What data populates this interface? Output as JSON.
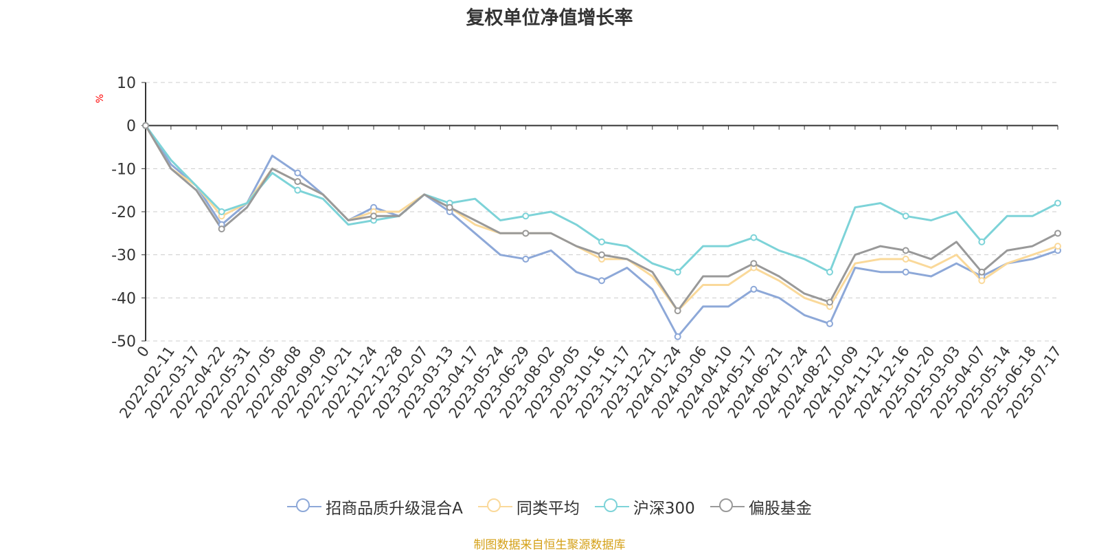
{
  "chart_data": {
    "type": "line",
    "title": "复权单位净值增长率",
    "ylabel": "%",
    "ylim": [
      -50,
      10
    ],
    "yticks": [
      10,
      0,
      -10,
      -20,
      -30,
      -40,
      -50
    ],
    "x": [
      "0",
      "2022-02-11",
      "2022-03-17",
      "2022-04-22",
      "2022-05-31",
      "2022-07-05",
      "2022-08-08",
      "2022-09-09",
      "2022-10-21",
      "2022-11-24",
      "2022-12-28",
      "2023-02-07",
      "2023-03-13",
      "2023-04-17",
      "2023-05-24",
      "2023-06-29",
      "2023-08-02",
      "2023-09-05",
      "2023-10-16",
      "2023-11-17",
      "2023-12-21",
      "2024-01-24",
      "2024-03-06",
      "2024-04-10",
      "2024-05-17",
      "2024-06-21",
      "2024-07-24",
      "2024-08-27",
      "2024-10-09",
      "2024-11-12",
      "2024-12-16",
      "2025-01-20",
      "2025-03-03",
      "2025-04-07",
      "2025-05-14",
      "2025-06-18",
      "2025-07-17"
    ],
    "series": [
      {
        "name": "招商品质升级混合A",
        "color": "#8da8d8",
        "values": [
          0,
          -9,
          -14,
          -23,
          -18,
          -7,
          -11,
          -16,
          -22,
          -19,
          -21,
          -16,
          -20,
          -25,
          -30,
          -31,
          -29,
          -34,
          -36,
          -33,
          -38,
          -49,
          -42,
          -42,
          -38,
          -40,
          -44,
          -46,
          -33,
          -34,
          -34,
          -35,
          -32,
          -35,
          -32,
          -31,
          -29
        ]
      },
      {
        "name": "同类平均",
        "color": "#fad99a",
        "values": [
          0,
          -10,
          -14,
          -21,
          -18,
          -10,
          -13,
          -16,
          -22,
          -20,
          -20,
          -16,
          -19,
          -23,
          -25,
          -25,
          -25,
          -28,
          -31,
          -31,
          -35,
          -43,
          -37,
          -37,
          -33,
          -36,
          -40,
          -42,
          -32,
          -31,
          -31,
          -33,
          -30,
          -36,
          -32,
          -30,
          -28
        ]
      },
      {
        "name": "沪深300",
        "color": "#7dd3d8",
        "values": [
          0,
          -8,
          -14,
          -20,
          -18,
          -11,
          -15,
          -17,
          -23,
          -22,
          -21,
          -16,
          -18,
          -17,
          -22,
          -21,
          -20,
          -23,
          -27,
          -28,
          -32,
          -34,
          -28,
          -28,
          -26,
          -29,
          -31,
          -34,
          -19,
          -18,
          -21,
          -22,
          -20,
          -27,
          -21,
          -21,
          -18
        ]
      },
      {
        "name": "偏股基金",
        "color": "#999999",
        "values": [
          0,
          -10,
          -15,
          -24,
          -19,
          -10,
          -13,
          -16,
          -22,
          -21,
          -21,
          -16,
          -19,
          -22,
          -25,
          -25,
          -25,
          -28,
          -30,
          -31,
          -34,
          -43,
          -35,
          -35,
          -32,
          -35,
          -39,
          -41,
          -30,
          -28,
          -29,
          -31,
          -27,
          -34,
          -29,
          -28,
          -25
        ]
      }
    ]
  },
  "source_text": "制图数据来自恒生聚源数据库"
}
